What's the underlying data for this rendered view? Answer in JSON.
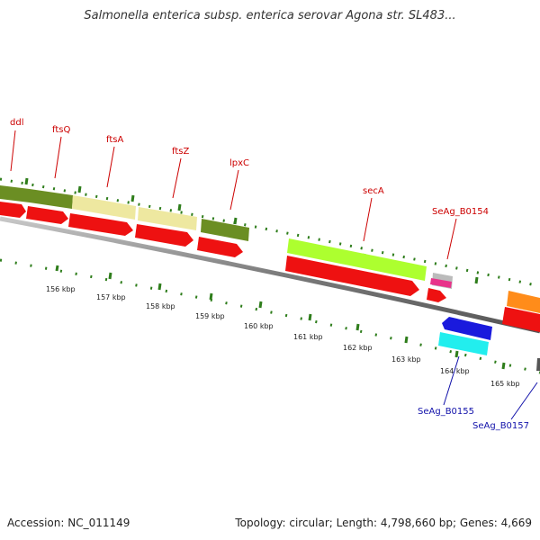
{
  "title": "Salmonella enterica subsp. enterica serovar Agona str. SL483...",
  "footer": {
    "accession": "Accession: NC_011149",
    "topology": "Topology: circular; Length: 4,798,660 bp; Genes: 4,669"
  },
  "colors": {
    "cds_red": "#ee1111",
    "backbone": "#8a8a8a",
    "tick_green": "#2e7d1b",
    "label_red": "#cc0000",
    "label_blue": "#1111aa"
  },
  "genes": [
    {
      "label": "ddl",
      "color": "#6b8e23"
    },
    {
      "label": "ftsQ",
      "color": "#6b8e23"
    },
    {
      "label": "ftsA",
      "color": "#eee8a0"
    },
    {
      "label": "ftsZ",
      "color": "#eee8a0"
    },
    {
      "label": "lpxC",
      "color": "#6b8e23"
    },
    {
      "label": "secA",
      "color": "#adff2f"
    },
    {
      "label": "SeAg_B0154",
      "color": "#bbbbbb"
    },
    {
      "label": "SeAg_B0155",
      "color": "#1a1add"
    },
    {
      "label": "SeAg_B0157",
      "color": "#ff8c1a"
    }
  ],
  "scale_ticks": [
    "156 kbp",
    "157 kbp",
    "158 kbp",
    "159 kbp",
    "160 kbp",
    "161 kbp",
    "162 kbp",
    "163 kbp",
    "164 kbp",
    "165 kbp"
  ]
}
